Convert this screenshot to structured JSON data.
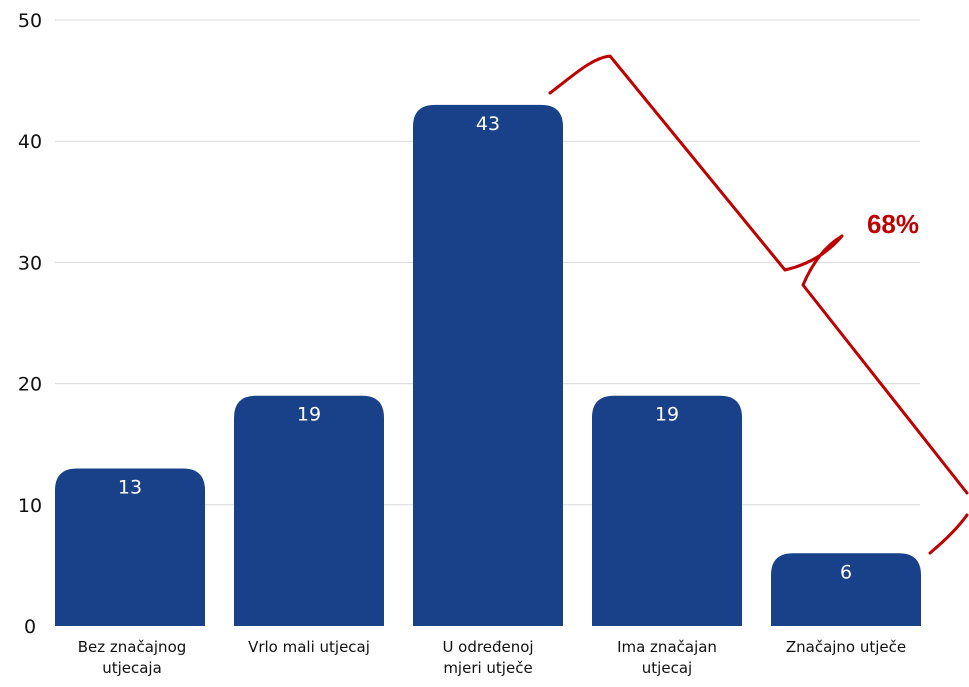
{
  "colors": {
    "bar": "#18418a",
    "annotation": "#c00000",
    "gridline": "#d9d9d9",
    "text": "#111111"
  },
  "chart_data": {
    "type": "bar",
    "categories": [
      [
        "Bez značajnog",
        "utjecaja"
      ],
      [
        "Vrlo mali utjecaj"
      ],
      [
        "U određenoj",
        "mjeri utječe"
      ],
      [
        "Ima značajan",
        "utjecaj"
      ],
      [
        "Značajno utječe"
      ]
    ],
    "values": [
      13,
      19,
      43,
      19,
      6
    ],
    "data_labels": [
      "13",
      "19",
      "43",
      "19",
      "6"
    ],
    "ylim": [
      0,
      50
    ],
    "yticks": [
      0,
      10,
      20,
      30,
      40,
      50
    ],
    "grid": true,
    "annotation": {
      "text": "68%",
      "shape": "brace",
      "spans_categories": [
        2,
        4
      ]
    }
  }
}
